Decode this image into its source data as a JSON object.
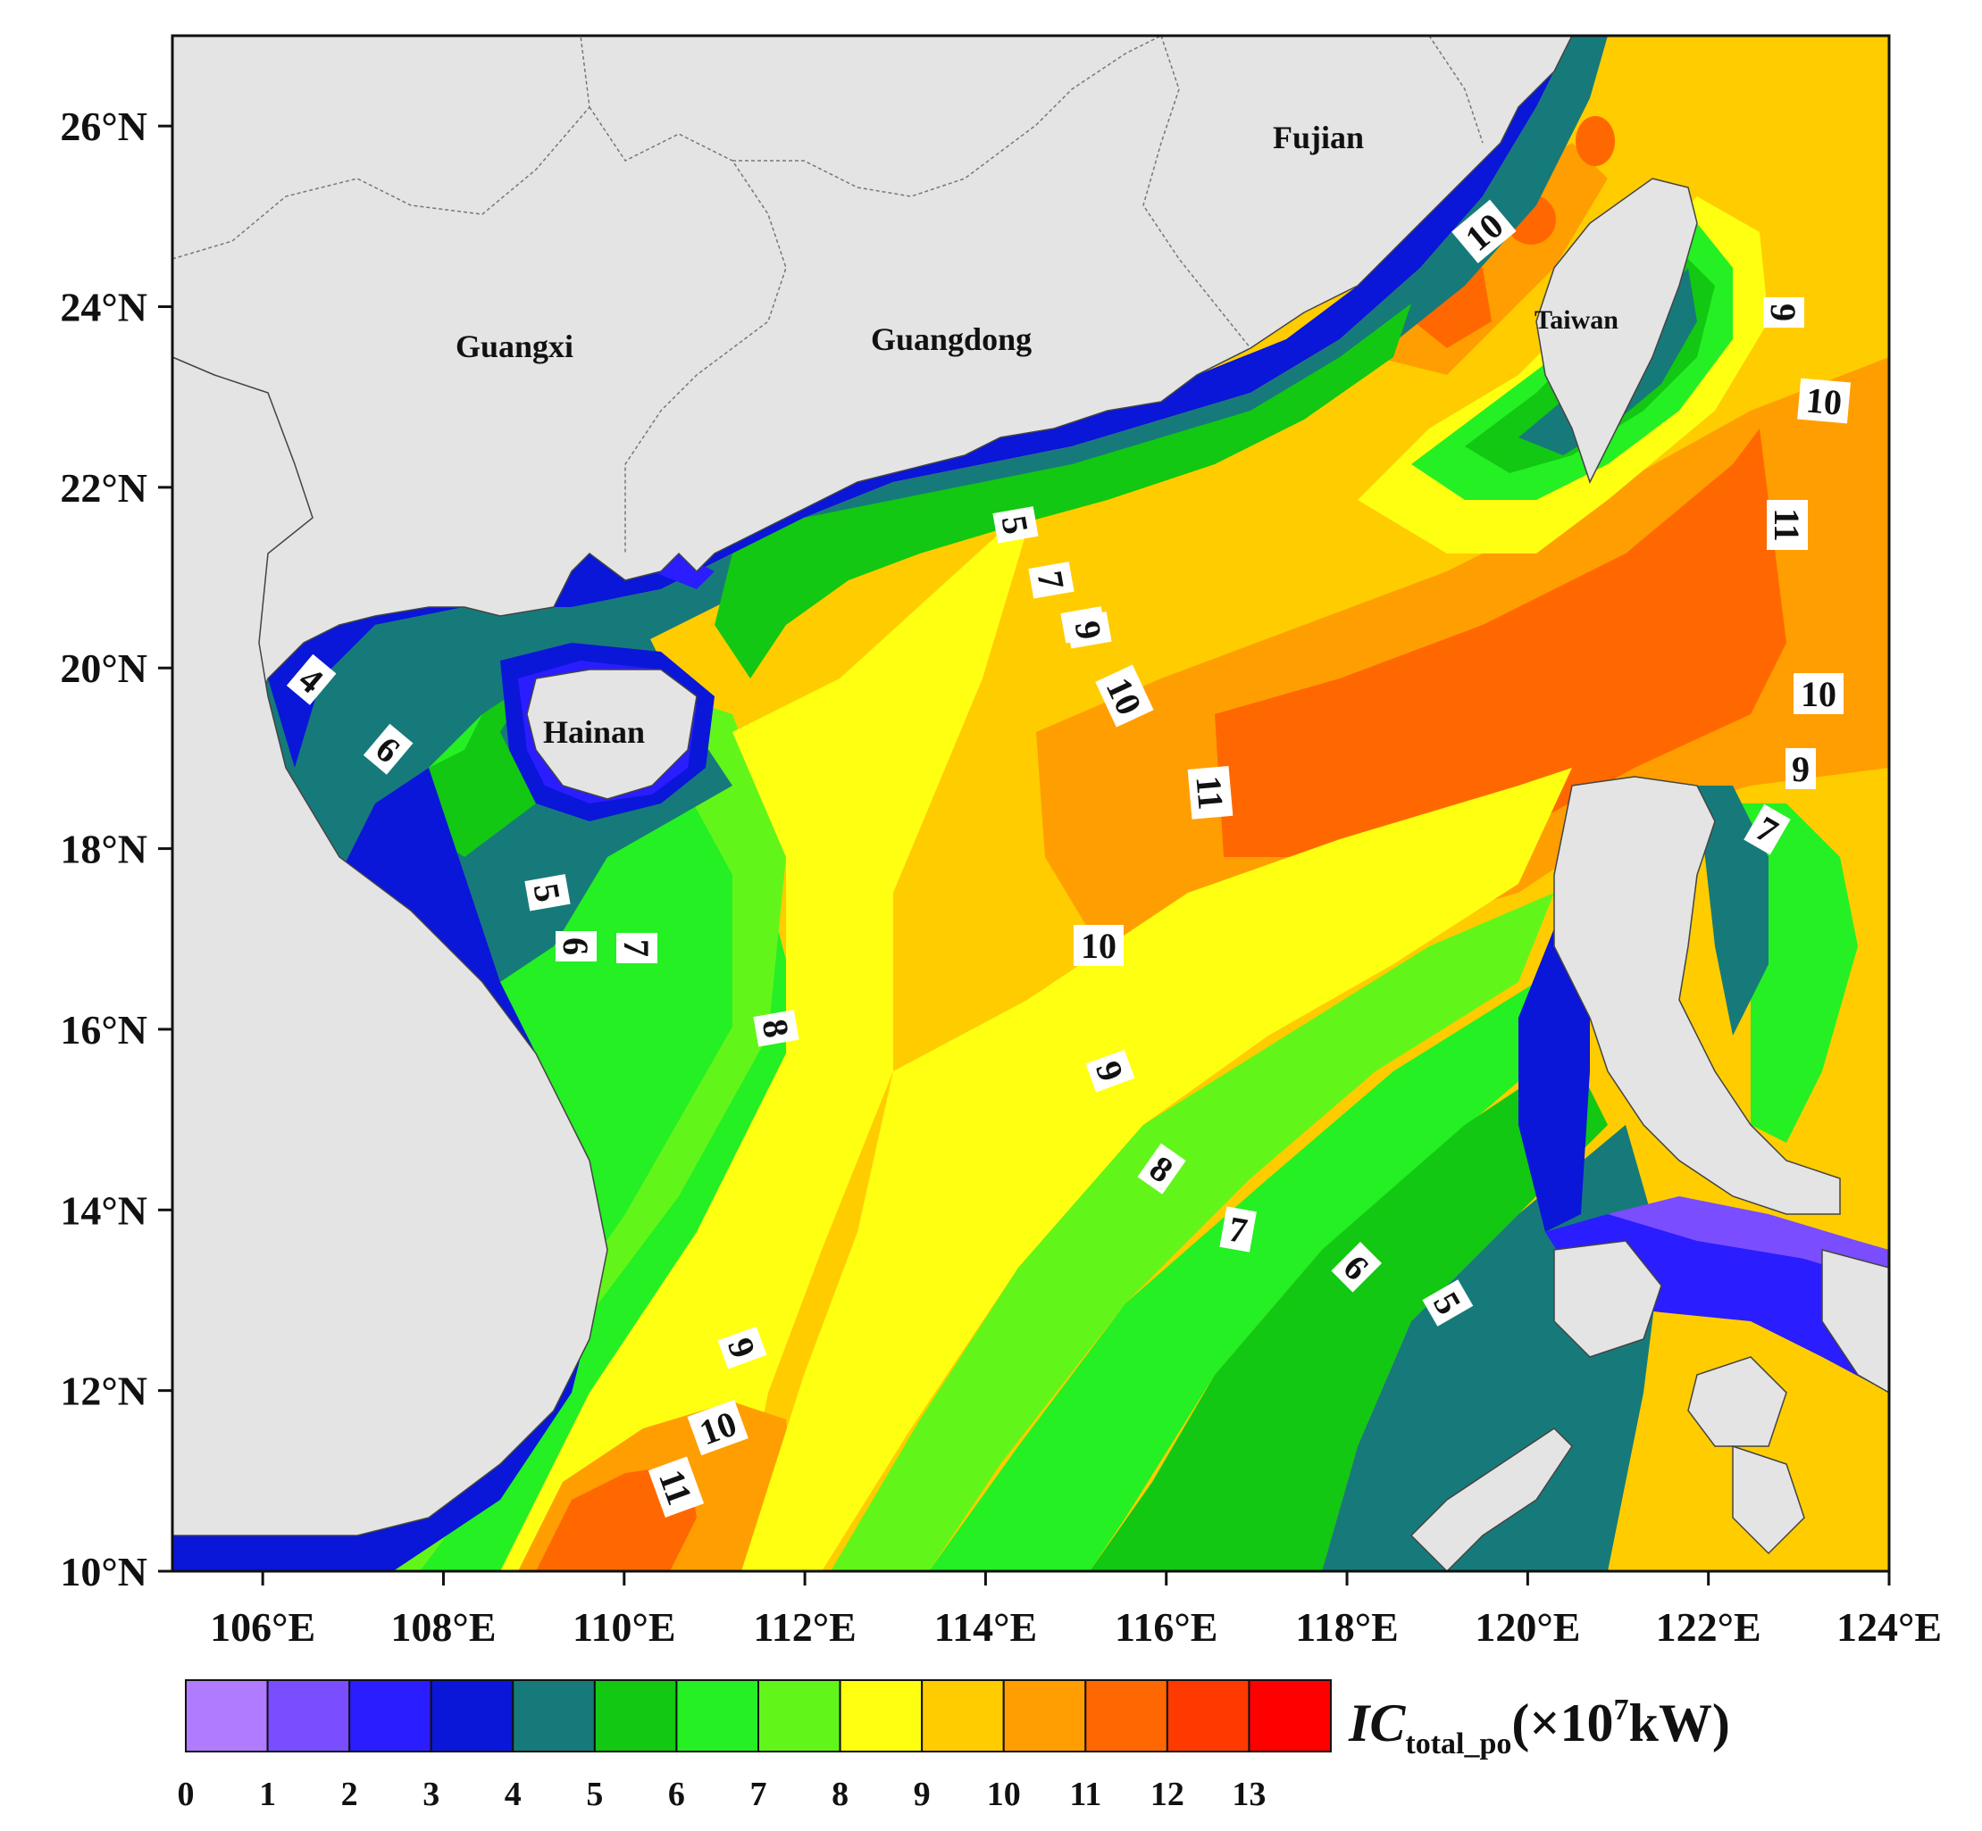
{
  "map": {
    "x_ticks": [
      "106°E",
      "108°E",
      "110°E",
      "112°E",
      "114°E",
      "116°E",
      "118°E",
      "120°E",
      "122°E",
      "124°E"
    ],
    "y_ticks": [
      "10°N",
      "12°N",
      "14°N",
      "16°N",
      "18°N",
      "20°N",
      "22°N",
      "24°N",
      "26°N"
    ],
    "lon_range": [
      105,
      124
    ],
    "lat_range": [
      10,
      27
    ],
    "regions": [
      "Guangxi",
      "Guangdong",
      "Fujian",
      "Hainan",
      "Taiwan"
    ],
    "contour_labels": [
      "4",
      "6",
      "5",
      "6",
      "7",
      "8",
      "5",
      "7",
      "8",
      "9",
      "10",
      "11",
      "10",
      "9",
      "8",
      "7",
      "6",
      "5",
      "9",
      "10",
      "11",
      "10",
      "9",
      "10",
      "11",
      "10",
      "9",
      "7"
    ]
  },
  "colorbar": {
    "ticks": [
      "0",
      "1",
      "2",
      "3",
      "4",
      "5",
      "6",
      "7",
      "8",
      "9",
      "10",
      "11",
      "12",
      "13"
    ],
    "colors": [
      "#b07bff",
      "#7a4dff",
      "#2a1dff",
      "#0a16d8",
      "#177a7a",
      "#12c812",
      "#24f024",
      "#62f51a",
      "#ffff12",
      "#ffcc00",
      "#ff9e00",
      "#ff6800",
      "#ff3a00",
      "#ff0000"
    ],
    "title_main": "IC",
    "title_sub": "total_po",
    "title_unit": "(×10",
    "title_exp": "7",
    "title_end": "kW)"
  },
  "colors": {
    "land": "#e4e4e4",
    "border": "#444444"
  }
}
